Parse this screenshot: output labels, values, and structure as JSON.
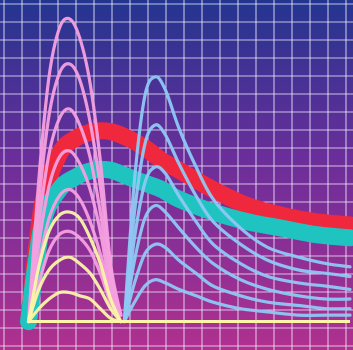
{
  "chart_data": {
    "type": "line",
    "title": "",
    "xlabel": "",
    "ylabel": "",
    "xlim": [
      0,
      10
    ],
    "ylim": [
      0,
      10
    ],
    "grid": true,
    "legend": "none",
    "x_tick_labels": [],
    "y_tick_labels": [],
    "colors": {
      "background_top": "#23358f",
      "background_mid": "#6a2e9a",
      "background_bottom": "#b0308f",
      "grid": "#f4f0ff",
      "pink_curves": "#f6a0e0",
      "yellow_curves": "#fbf6a6",
      "blue_curves": "#8ec8f4",
      "red_band": "#f0283e",
      "teal_band": "#1fc3c0"
    },
    "series": [
      {
        "group": "pink-family",
        "color": "#f6a0e0",
        "x": [
          0.6,
          0.9,
          1.2,
          1.5,
          1.8,
          2.1,
          2.4,
          2.7,
          3.0,
          3.3
        ],
        "curves": [
          [
            0.2,
            4.6,
            7.8,
            9.3,
            9.6,
            9.0,
            7.6,
            5.2,
            2.0,
            0.4
          ],
          [
            0.2,
            3.9,
            6.6,
            7.9,
            8.2,
            7.7,
            6.4,
            4.4,
            1.8,
            0.4
          ],
          [
            0.2,
            3.2,
            5.4,
            6.5,
            6.8,
            6.3,
            5.3,
            3.6,
            1.5,
            0.4
          ],
          [
            0.2,
            2.6,
            4.4,
            5.3,
            5.5,
            5.1,
            4.3,
            3.0,
            1.2,
            0.4
          ],
          [
            0.2,
            2.0,
            3.4,
            4.1,
            4.3,
            4.0,
            3.3,
            2.3,
            1.0,
            0.4
          ],
          [
            0.2,
            1.4,
            2.4,
            2.9,
            3.0,
            2.8,
            2.4,
            1.7,
            0.8,
            0.4
          ]
        ]
      },
      {
        "group": "yellow-family",
        "color": "#fbf6a6",
        "x": [
          0.6,
          0.9,
          1.2,
          1.5,
          1.8,
          2.1,
          2.4,
          2.7,
          3.0,
          3.3
        ],
        "curves": [
          [
            0.2,
            1.9,
            3.0,
            3.5,
            3.6,
            3.4,
            2.8,
            2.0,
            0.9,
            0.2
          ],
          [
            0.2,
            1.2,
            1.8,
            2.1,
            2.2,
            2.0,
            1.7,
            1.2,
            0.6,
            0.2
          ],
          [
            0.2,
            0.6,
            0.9,
            1.1,
            1.1,
            1.0,
            0.9,
            0.6,
            0.3,
            0.2
          ]
        ]
      },
      {
        "group": "blue-family",
        "color": "#8ec8f4",
        "x": [
          3.4,
          3.7,
          4.0,
          4.3,
          4.6,
          5.0,
          5.5,
          6.0,
          6.8,
          7.6,
          8.5,
          9.3,
          10.0
        ],
        "curves": [
          [
            0.2,
            4.6,
            7.2,
            7.8,
            7.4,
            6.2,
            5.0,
            4.0,
            3.1,
            2.5,
            2.2,
            2.0,
            1.9
          ],
          [
            0.2,
            3.6,
            5.7,
            6.3,
            6.0,
            5.1,
            4.1,
            3.3,
            2.6,
            2.1,
            1.8,
            1.7,
            1.6
          ],
          [
            0.2,
            2.8,
            4.5,
            5.0,
            4.8,
            4.1,
            3.3,
            2.6,
            2.0,
            1.6,
            1.4,
            1.3,
            1.2
          ],
          [
            0.2,
            2.1,
            3.4,
            3.8,
            3.6,
            3.1,
            2.5,
            2.0,
            1.5,
            1.2,
            1.0,
            0.9,
            0.9
          ],
          [
            0.2,
            1.4,
            2.3,
            2.6,
            2.5,
            2.1,
            1.7,
            1.3,
            1.0,
            0.8,
            0.7,
            0.6,
            0.6
          ],
          [
            0.2,
            0.8,
            1.3,
            1.5,
            1.4,
            1.2,
            1.0,
            0.8,
            0.6,
            0.5,
            0.4,
            0.4,
            0.4
          ]
        ]
      },
      {
        "group": "red-band",
        "color": "#f0283e",
        "x": [
          0.6,
          1.0,
          1.5,
          2.0,
          2.5,
          3.0,
          3.5,
          4.0,
          4.5,
          5.0,
          6.0,
          7.0,
          8.0,
          9.0,
          10.0
        ],
        "curves": [
          [
            0.2,
            3.8,
            5.4,
            5.9,
            6.1,
            6.1,
            5.9,
            5.6,
            5.2,
            4.9,
            4.3,
            3.8,
            3.5,
            3.3,
            3.2
          ]
        ]
      },
      {
        "group": "teal-band",
        "color": "#1fc3c0",
        "x": [
          0.6,
          1.0,
          1.5,
          2.0,
          2.5,
          3.0,
          3.5,
          4.0,
          4.5,
          5.0,
          6.0,
          7.0,
          8.0,
          9.0,
          10.0
        ],
        "curves": [
          [
            0.2,
            3.2,
            4.3,
            4.7,
            4.9,
            4.9,
            4.7,
            4.5,
            4.3,
            4.0,
            3.6,
            3.3,
            3.1,
            2.9,
            2.8
          ]
        ]
      }
    ]
  }
}
